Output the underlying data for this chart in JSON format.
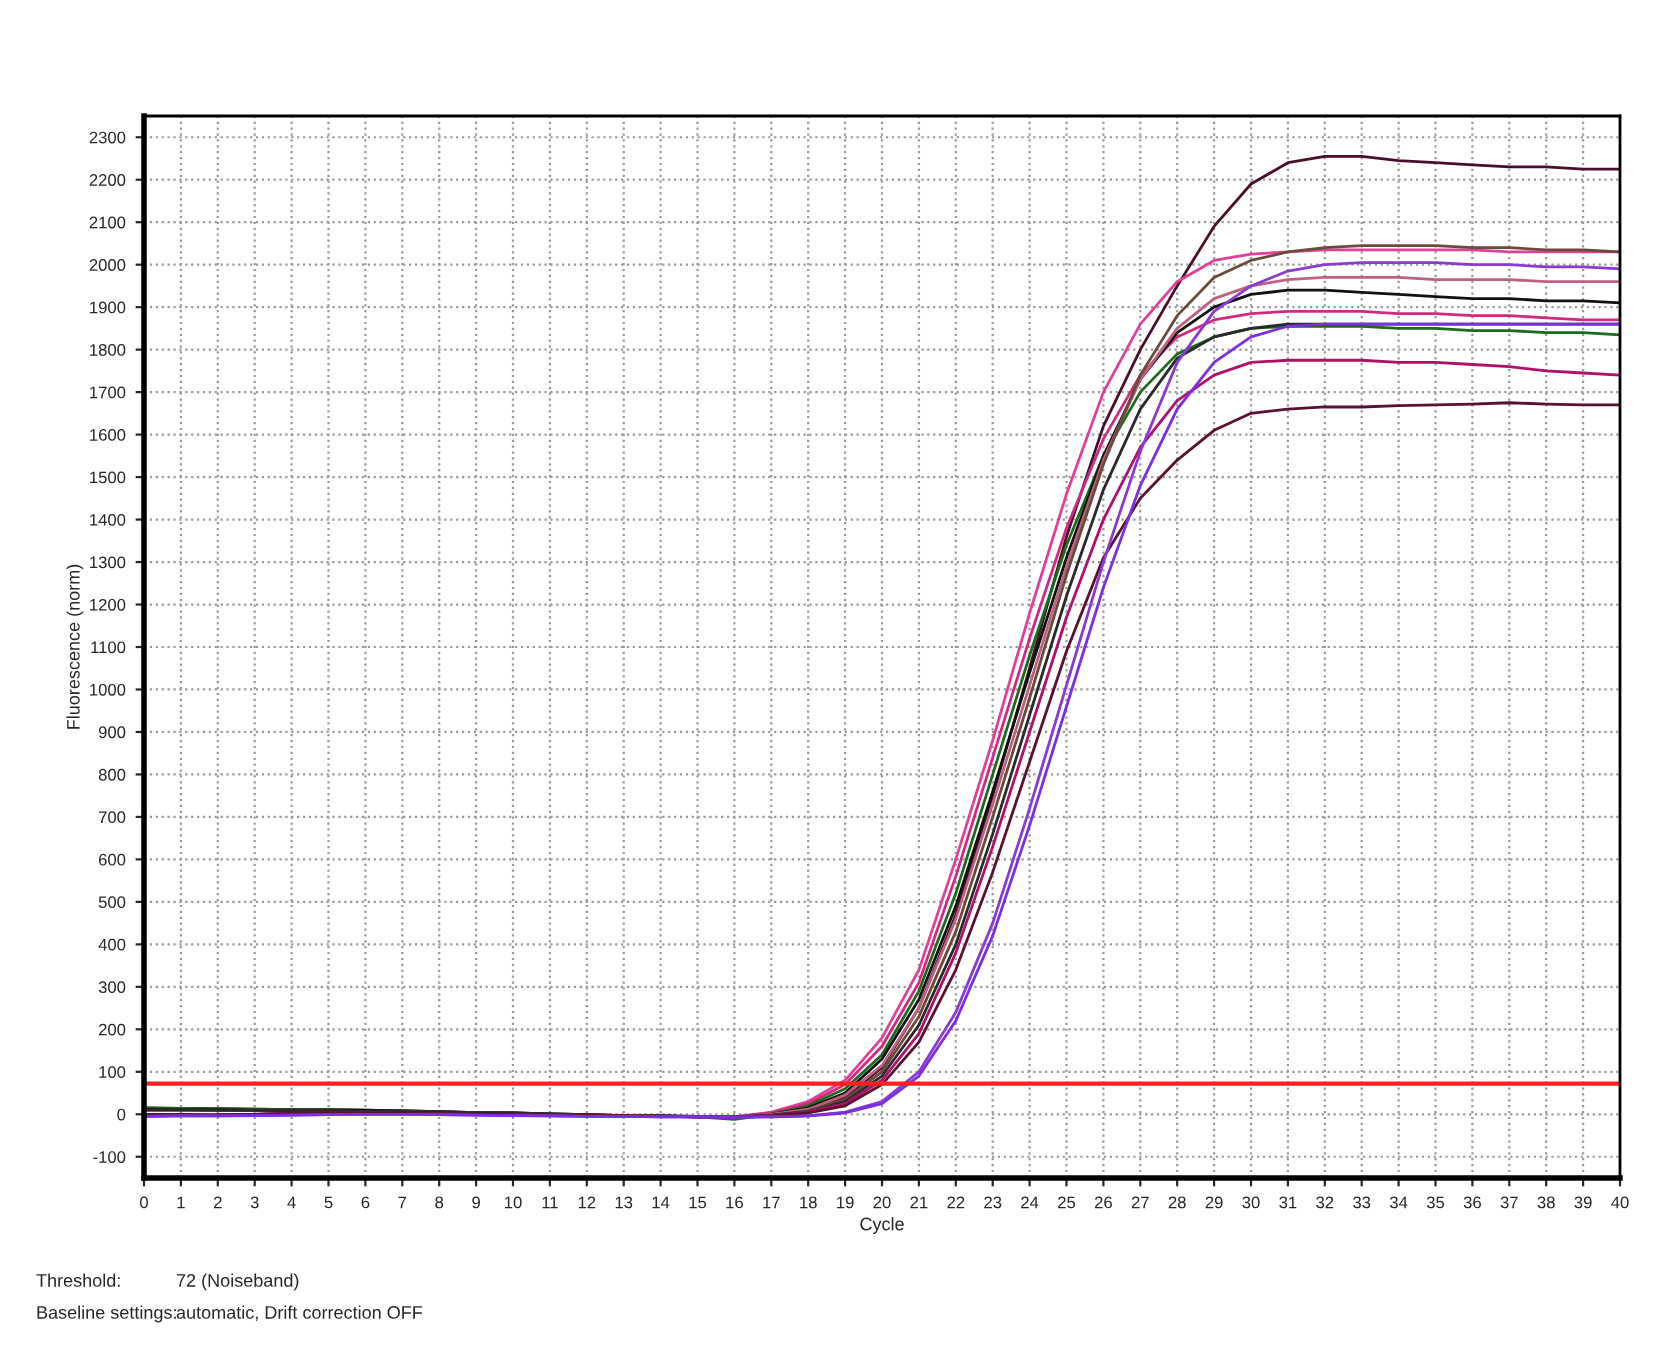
{
  "chart_data": {
    "type": "line",
    "xlabel": "Cycle",
    "ylabel": "Fluorescence (norm)",
    "x": [
      0,
      1,
      2,
      3,
      4,
      5,
      6,
      7,
      8,
      9,
      10,
      11,
      12,
      13,
      14,
      15,
      16,
      17,
      18,
      19,
      20,
      21,
      22,
      23,
      24,
      25,
      26,
      27,
      28,
      29,
      30,
      31,
      32,
      33,
      34,
      35,
      36,
      37,
      38,
      39,
      40
    ],
    "xlim": [
      0,
      40
    ],
    "xticks": [
      0,
      1,
      2,
      3,
      4,
      5,
      6,
      7,
      8,
      9,
      10,
      11,
      12,
      13,
      14,
      15,
      16,
      17,
      18,
      19,
      20,
      21,
      22,
      23,
      24,
      25,
      26,
      27,
      28,
      29,
      30,
      31,
      32,
      33,
      34,
      35,
      36,
      37,
      38,
      39,
      40
    ],
    "ylim": [
      -150,
      2350
    ],
    "yticks": [
      -100,
      0,
      100,
      200,
      300,
      400,
      500,
      600,
      700,
      800,
      900,
      1000,
      1100,
      1200,
      1300,
      1400,
      1500,
      1600,
      1700,
      1800,
      1900,
      2000,
      2100,
      2200,
      2300
    ],
    "grid": true,
    "marker": "none",
    "line_style": "solid",
    "series": [
      {
        "color": "#4a0d2a",
        "values": [
          15,
          14,
          13,
          12,
          11,
          11,
          10,
          8,
          6,
          4,
          3,
          1,
          -1,
          -3,
          -4,
          -6,
          -8,
          -2,
          10,
          40,
          110,
          250,
          470,
          750,
          1050,
          1360,
          1620,
          1800,
          1950,
          2090,
          2190,
          2240,
          2255,
          2255,
          2245,
          2240,
          2235,
          2230,
          2230,
          2225,
          2225
        ]
      },
      {
        "color": "#e0409a",
        "values": [
          null,
          null,
          -1,
          0,
          2,
          3,
          3,
          2,
          1,
          0,
          -1,
          -2,
          -3,
          -4,
          -5,
          -6,
          -6,
          5,
          30,
          80,
          180,
          340,
          600,
          880,
          1180,
          1460,
          1700,
          1860,
          1960,
          2010,
          2025,
          2030,
          2035,
          2035,
          2035,
          2035,
          2035,
          2030,
          2030,
          2030,
          2030
        ]
      },
      {
        "color": "#d02a80",
        "values": [
          null,
          null,
          -1,
          0,
          2,
          3,
          3,
          2,
          1,
          0,
          -1,
          -2,
          -3,
          -4,
          -5,
          -6,
          -6,
          3,
          25,
          70,
          160,
          310,
          560,
          840,
          1120,
          1380,
          1590,
          1740,
          1830,
          1870,
          1885,
          1890,
          1890,
          1890,
          1885,
          1885,
          1880,
          1880,
          1875,
          1870,
          1870
        ]
      },
      {
        "color": "#1a6b1a",
        "values": [
          15,
          14,
          13,
          12,
          11,
          11,
          10,
          8,
          6,
          4,
          3,
          1,
          -1,
          -3,
          -4,
          -6,
          -12,
          0,
          20,
          60,
          140,
          290,
          520,
          800,
          1080,
          1340,
          1550,
          1700,
          1790,
          1830,
          1850,
          1855,
          1855,
          1855,
          1850,
          1850,
          1845,
          1845,
          1840,
          1840,
          1835
        ]
      },
      {
        "color": "#111111",
        "values": [
          12,
          11,
          11,
          10,
          10,
          10,
          9,
          8,
          6,
          4,
          3,
          1,
          -1,
          -3,
          -4,
          -6,
          -8,
          0,
          15,
          50,
          130,
          270,
          490,
          760,
          1040,
          1310,
          1550,
          1730,
          1840,
          1900,
          1930,
          1940,
          1940,
          1935,
          1930,
          1925,
          1920,
          1920,
          1915,
          1915,
          1910
        ]
      },
      {
        "color": "#c06080",
        "values": [
          null,
          null,
          -1,
          0,
          2,
          3,
          3,
          2,
          1,
          0,
          -1,
          -2,
          -3,
          -4,
          -5,
          -6,
          -6,
          0,
          12,
          45,
          115,
          250,
          460,
          730,
          1010,
          1290,
          1540,
          1730,
          1850,
          1920,
          1950,
          1965,
          1970,
          1970,
          1970,
          1965,
          1965,
          1965,
          1960,
          1960,
          1960
        ]
      },
      {
        "color": "#6b4a3a",
        "values": [
          10,
          10,
          9,
          9,
          8,
          8,
          7,
          6,
          5,
          4,
          2,
          0,
          -2,
          -3,
          -4,
          -5,
          -6,
          -2,
          8,
          35,
          100,
          230,
          430,
          700,
          980,
          1270,
          1530,
          1740,
          1880,
          1970,
          2010,
          2030,
          2040,
          2045,
          2045,
          2045,
          2040,
          2040,
          2035,
          2035,
          2030
        ]
      },
      {
        "color": "#2a2a2a",
        "values": [
          10,
          10,
          9,
          9,
          8,
          8,
          7,
          6,
          5,
          4,
          2,
          0,
          -2,
          -3,
          -4,
          -5,
          -6,
          -2,
          6,
          30,
          90,
          210,
          400,
          660,
          940,
          1220,
          1470,
          1660,
          1780,
          1830,
          1850,
          1860,
          1860,
          1860,
          1860,
          1860,
          1860,
          1860,
          1860,
          1860,
          1860
        ]
      },
      {
        "color": "#b0106a",
        "values": [
          null,
          null,
          -1,
          0,
          2,
          3,
          3,
          2,
          1,
          0,
          -1,
          -2,
          -3,
          -4,
          -5,
          -6,
          -6,
          -3,
          5,
          25,
          80,
          190,
          380,
          630,
          900,
          1170,
          1400,
          1570,
          1680,
          1740,
          1770,
          1775,
          1775,
          1775,
          1770,
          1770,
          1765,
          1760,
          1750,
          1745,
          1740
        ]
      },
      {
        "color": "#5a1030",
        "values": [
          0,
          0,
          -1,
          0,
          2,
          3,
          3,
          2,
          1,
          0,
          -1,
          -2,
          -3,
          -4,
          -5,
          -6,
          -6,
          -4,
          3,
          20,
          70,
          170,
          340,
          570,
          830,
          1090,
          1310,
          1450,
          1540,
          1610,
          1650,
          1660,
          1665,
          1665,
          1668,
          1670,
          1672,
          1675,
          1672,
          1670,
          1670
        ]
      },
      {
        "color": "#8a3ad0",
        "values": [
          -5,
          -4,
          -4,
          -3,
          -2,
          -1,
          0,
          0,
          -1,
          -2,
          -3,
          -4,
          -5,
          -5,
          -6,
          -6,
          -7,
          -6,
          -4,
          5,
          30,
          100,
          240,
          450,
          720,
          1010,
          1300,
          1560,
          1770,
          1890,
          1950,
          1985,
          2000,
          2005,
          2005,
          2005,
          2000,
          2000,
          1995,
          1995,
          1990
        ]
      },
      {
        "color": "#7a30e0",
        "values": [
          -5,
          -4,
          -4,
          -3,
          -2,
          -1,
          0,
          0,
          -1,
          -2,
          -3,
          -4,
          -5,
          -5,
          -6,
          -6,
          -7,
          -6,
          -4,
          3,
          25,
          90,
          220,
          420,
          680,
          960,
          1240,
          1480,
          1660,
          1770,
          1830,
          1855,
          1860,
          1860,
          1860,
          1860,
          1860,
          1860,
          1860,
          1860,
          1860
        ]
      }
    ],
    "ref_lines": [
      {
        "axis": "y",
        "value": 72,
        "color": "#ff2020"
      }
    ],
    "annotations": [
      "Threshold:",
      "72 (Noiseband)",
      "Baseline settings:",
      "automatic, Drift correction OFF"
    ]
  }
}
